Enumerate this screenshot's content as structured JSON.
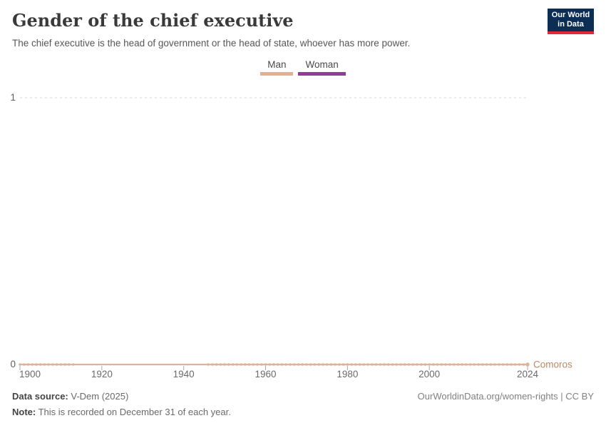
{
  "header": {
    "title": "Gender of the chief executive",
    "subtitle": "The chief executive is the head of government or the head of state, whoever has more power.",
    "logo": {
      "line1": "Our World",
      "line2": "in Data",
      "bg_color": "#0d2e54",
      "accent_color": "#e0293a"
    }
  },
  "legend": {
    "items": [
      {
        "label": "Man",
        "color": "#DFB295",
        "value_encoded": 0
      },
      {
        "label": "Woman",
        "color": "#8B3E92",
        "value_encoded": 1
      }
    ]
  },
  "chart_data": {
    "type": "line",
    "title": "Gender of the chief executive",
    "entity": "Comoros",
    "entity_label_color": "#b98a68",
    "series": [
      {
        "name": "Comoros",
        "color": "#DFB295",
        "value_meaning": "0 = Man, 1 = Woman",
        "segments": [
          {
            "start_year": 1900,
            "end_year": 1913,
            "value": 0
          },
          {
            "start_year": 1946,
            "end_year": 2024,
            "value": 0
          }
        ],
        "gap_connected_by_plain_line": true
      }
    ],
    "x_ticks": [
      1900,
      1920,
      1940,
      1960,
      1980,
      2000,
      2024
    ],
    "y_ticks": [
      0,
      1
    ],
    "xlim": [
      1900,
      2024
    ],
    "ylim": [
      0,
      1
    ],
    "grid": "dashed horizontal at y=1",
    "legend_position": "top-center"
  },
  "footer": {
    "source_label": "Data source:",
    "source_text": " V-Dem (2025)",
    "note_label": "Note:",
    "note_text": " This is recorded on December 31 of each year.",
    "rights": "OurWorldinData.org/women-rights | CC BY"
  }
}
